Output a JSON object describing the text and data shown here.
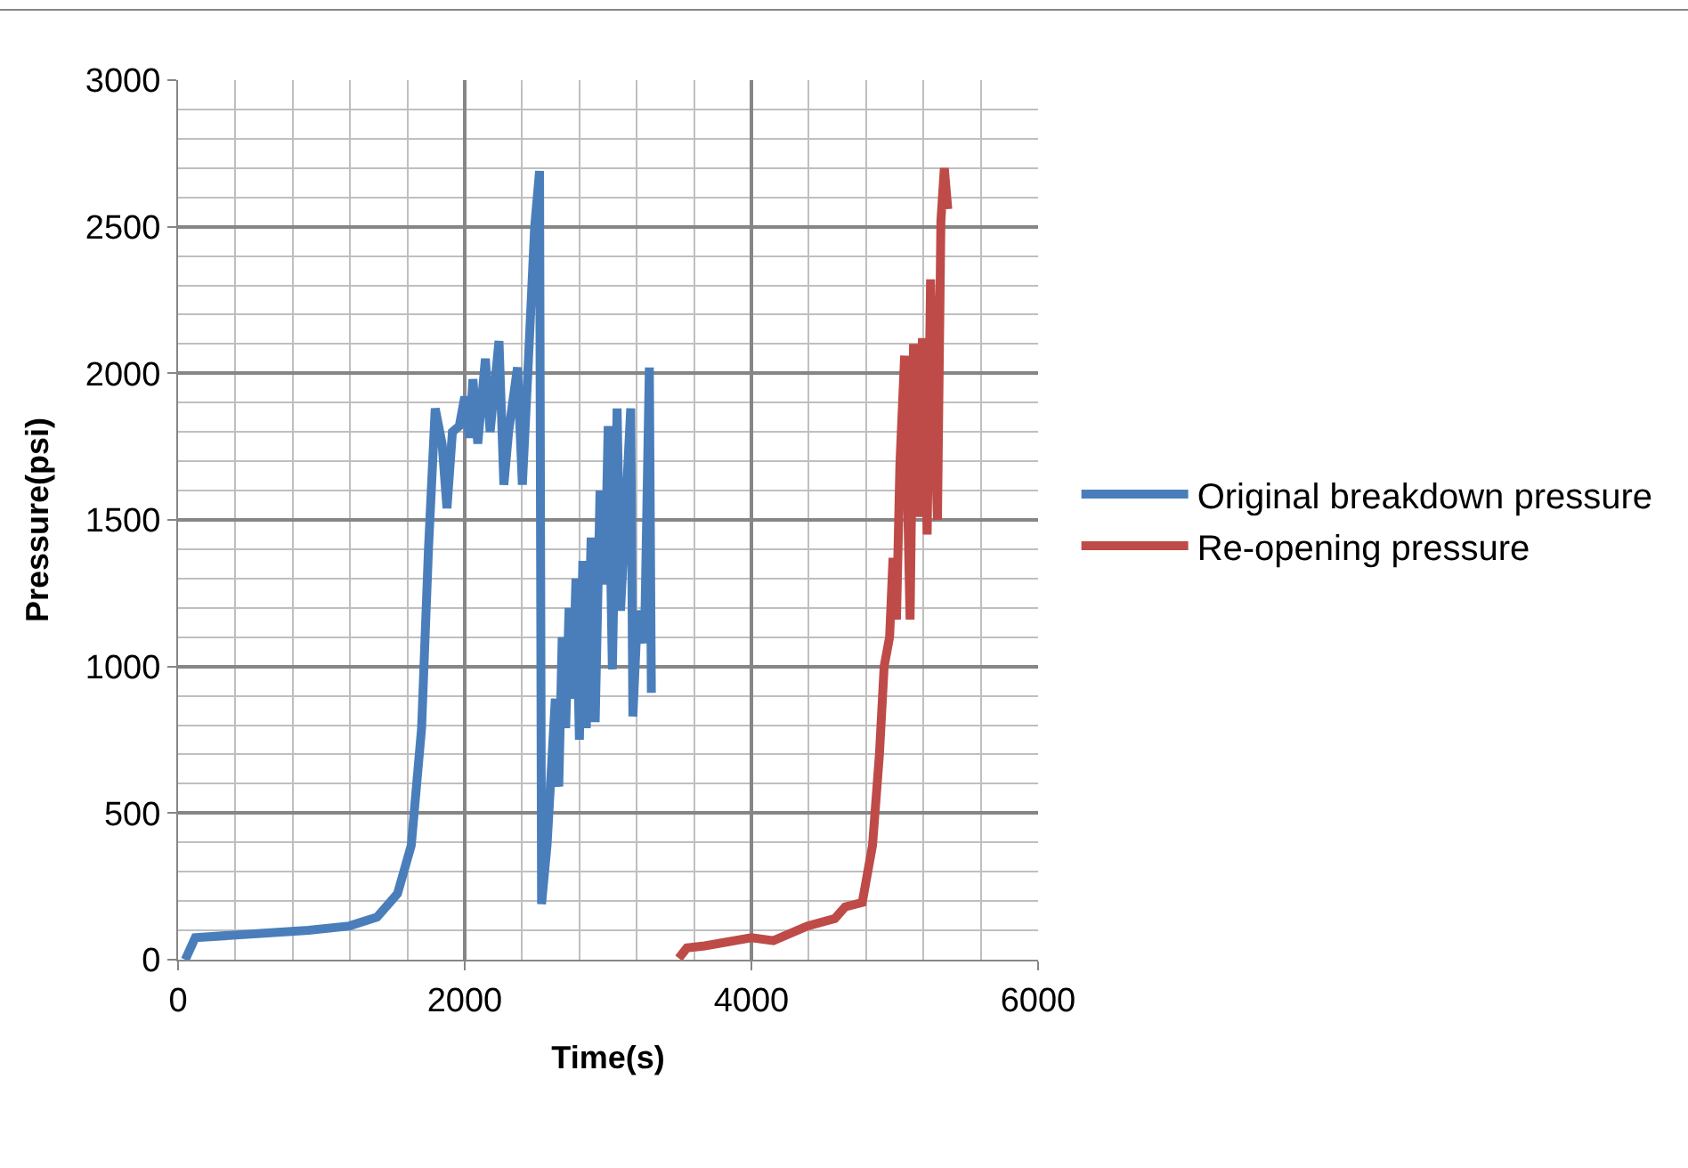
{
  "chart_data": {
    "type": "line",
    "xlabel": "Time(s)",
    "ylabel": "Pressure(psi)",
    "xlim": [
      0,
      6000
    ],
    "ylim": [
      0,
      3000
    ],
    "xticks": [
      0,
      2000,
      4000,
      6000
    ],
    "yticks": [
      0,
      500,
      1000,
      1500,
      2000,
      2500,
      3000
    ],
    "grid": true,
    "legend": "right",
    "marker": "none",
    "line_style": "solid",
    "series": [
      {
        "name": "Original breakdown pressure",
        "color": "#4a7ebb",
        "x": [
          50,
          120,
          430,
          910,
          1196,
          1388,
          1531,
          1627,
          1699,
          1747,
          1794,
          1842,
          1876,
          1914,
          1962,
          2000,
          2033,
          2057,
          2091,
          2144,
          2177,
          2239,
          2273,
          2306,
          2368,
          2402,
          2440,
          2488,
          2522,
          2536,
          2574,
          2632,
          2656,
          2680,
          2704,
          2728,
          2752,
          2776,
          2800,
          2824,
          2848,
          2882,
          2910,
          2944,
          2977,
          3001,
          3030,
          3063,
          3087,
          3158,
          3173,
          3206,
          3254,
          3288,
          3302
        ],
        "values": [
          0,
          75,
          85,
          100,
          115,
          145,
          225,
          390,
          790,
          1400,
          1880,
          1760,
          1540,
          1800,
          1820,
          1920,
          1780,
          1980,
          1760,
          2050,
          1800,
          2110,
          1620,
          1800,
          2020,
          1620,
          2000,
          2500,
          2690,
          190,
          390,
          890,
          590,
          1100,
          790,
          1200,
          890,
          1300,
          750,
          1360,
          790,
          1440,
          810,
          1600,
          1280,
          1820,
          990,
          1880,
          1190,
          1880,
          830,
          1190,
          1080,
          2020,
          910
        ]
      },
      {
        "name": "Re-opening pressure",
        "color": "#be4b48",
        "x": [
          3493,
          3550,
          3675,
          4000,
          4153,
          4391,
          4582,
          4654,
          4773,
          4845,
          4893,
          4926,
          4964,
          4988,
          5012,
          5036,
          5069,
          5107,
          5131,
          5165,
          5193,
          5226,
          5250,
          5298,
          5322,
          5346,
          5370
        ],
        "values": [
          5,
          40,
          47,
          75,
          65,
          115,
          140,
          180,
          195,
          390,
          700,
          1000,
          1100,
          1370,
          1160,
          1690,
          2060,
          1160,
          2100,
          1510,
          2120,
          1450,
          2320,
          1500,
          2520,
          2700,
          2560
        ]
      }
    ]
  }
}
